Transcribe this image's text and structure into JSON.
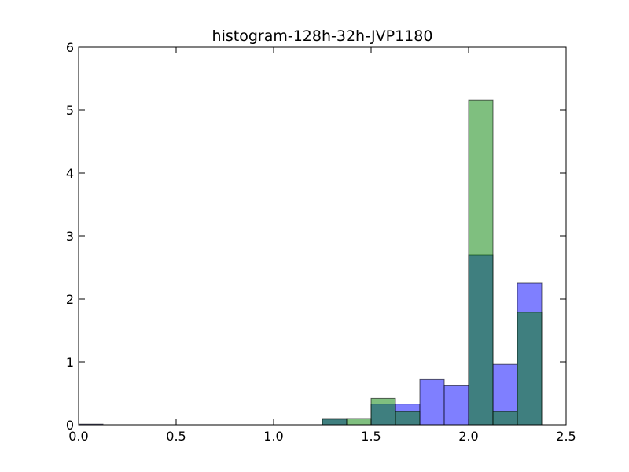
{
  "chart_data": {
    "type": "bar",
    "title": "histogram-128h-32h-JVP1180",
    "xlabel": "",
    "ylabel": "",
    "xlim": [
      0.0,
      2.5
    ],
    "ylim": [
      0,
      6
    ],
    "x_ticks": [
      "0.0",
      "0.5",
      "1.0",
      "1.5",
      "2.0",
      "2.5"
    ],
    "y_ticks": [
      "0",
      "1",
      "2",
      "3",
      "4",
      "5",
      "6"
    ],
    "grid": false,
    "legend": "none",
    "bin_edges": [
      0.0,
      0.125,
      0.25,
      0.375,
      0.5,
      0.625,
      0.75,
      0.875,
      1.0,
      1.125,
      1.25,
      1.375,
      1.5,
      1.625,
      1.75,
      1.875,
      2.0,
      2.125,
      2.25,
      2.375
    ],
    "series": [
      {
        "color": "#0000ff",
        "opacity": 0.5,
        "values": [
          0.01,
          0,
          0,
          0,
          0,
          0,
          0,
          0,
          0,
          0,
          0.1,
          0,
          0.33,
          0.33,
          0.72,
          0.62,
          2.7,
          0.96,
          2.25
        ]
      },
      {
        "color": "#008000",
        "opacity": 0.5,
        "values": [
          0,
          0,
          0,
          0,
          0,
          0,
          0,
          0,
          0,
          0,
          0.09,
          0.1,
          0.42,
          0.21,
          0,
          0,
          5.16,
          0.21,
          1.79
        ]
      }
    ]
  }
}
